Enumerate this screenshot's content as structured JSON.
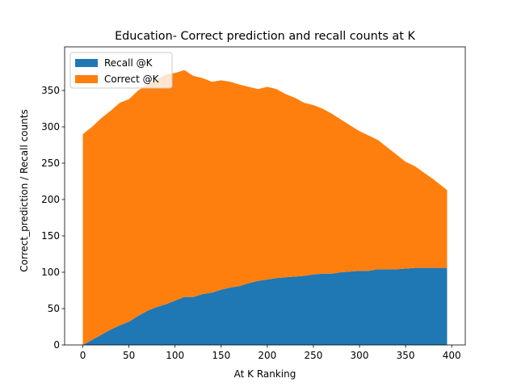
{
  "chart_data": {
    "type": "stackplot",
    "title": "Education- Correct prediction and recall counts at K",
    "xlabel": "At K Ranking",
    "ylabel": "Correct_prediction / Recall counts",
    "x": [
      0,
      10,
      20,
      30,
      40,
      50,
      60,
      70,
      80,
      90,
      100,
      110,
      120,
      130,
      140,
      150,
      160,
      170,
      180,
      190,
      200,
      210,
      220,
      230,
      240,
      250,
      260,
      270,
      280,
      290,
      300,
      310,
      320,
      330,
      340,
      350,
      360,
      370,
      380,
      390,
      395
    ],
    "series": [
      {
        "name": "Recall @K",
        "color": "#1f77b4",
        "values": [
          0,
          7,
          14,
          21,
          27,
          32,
          40,
          47,
          52,
          56,
          61,
          66,
          66,
          70,
          72,
          76,
          79,
          81,
          85,
          88,
          90,
          92,
          93,
          94,
          95,
          97,
          98,
          98,
          100,
          101,
          102,
          102,
          104,
          104,
          104,
          105,
          106,
          106,
          106,
          106,
          106
        ]
      },
      {
        "name": "Correct @K",
        "color": "#ff7f0e",
        "values": [
          290,
          293,
          298,
          301,
          306,
          306,
          310,
          311,
          313,
          316,
          313,
          312,
          304,
          297,
          290,
          288,
          283,
          277,
          270,
          264,
          265,
          260,
          252,
          246,
          238,
          233,
          227,
          220,
          210,
          201,
          192,
          186,
          178,
          168,
          158,
          147,
          140,
          131,
          122,
          112,
          107
        ]
      }
    ],
    "xlim": [
      -19.75,
      414.75
    ],
    "ylim": [
      0,
      410
    ],
    "xticks": [
      0,
      50,
      100,
      150,
      200,
      250,
      300,
      350,
      400
    ],
    "yticks": [
      0,
      50,
      100,
      150,
      200,
      250,
      300,
      350
    ],
    "legend": "upper left"
  }
}
